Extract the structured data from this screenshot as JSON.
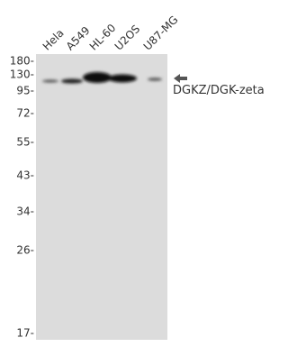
{
  "lanes": [
    "Hela",
    "A549",
    "HL-60",
    "U2OS",
    "U87-MG"
  ],
  "markers": [
    "180-",
    "130-",
    "95-",
    "72-",
    "55-",
    "43-",
    "34-",
    "26-",
    "17-"
  ],
  "band_label": "DGKZ/DGK-zeta"
}
